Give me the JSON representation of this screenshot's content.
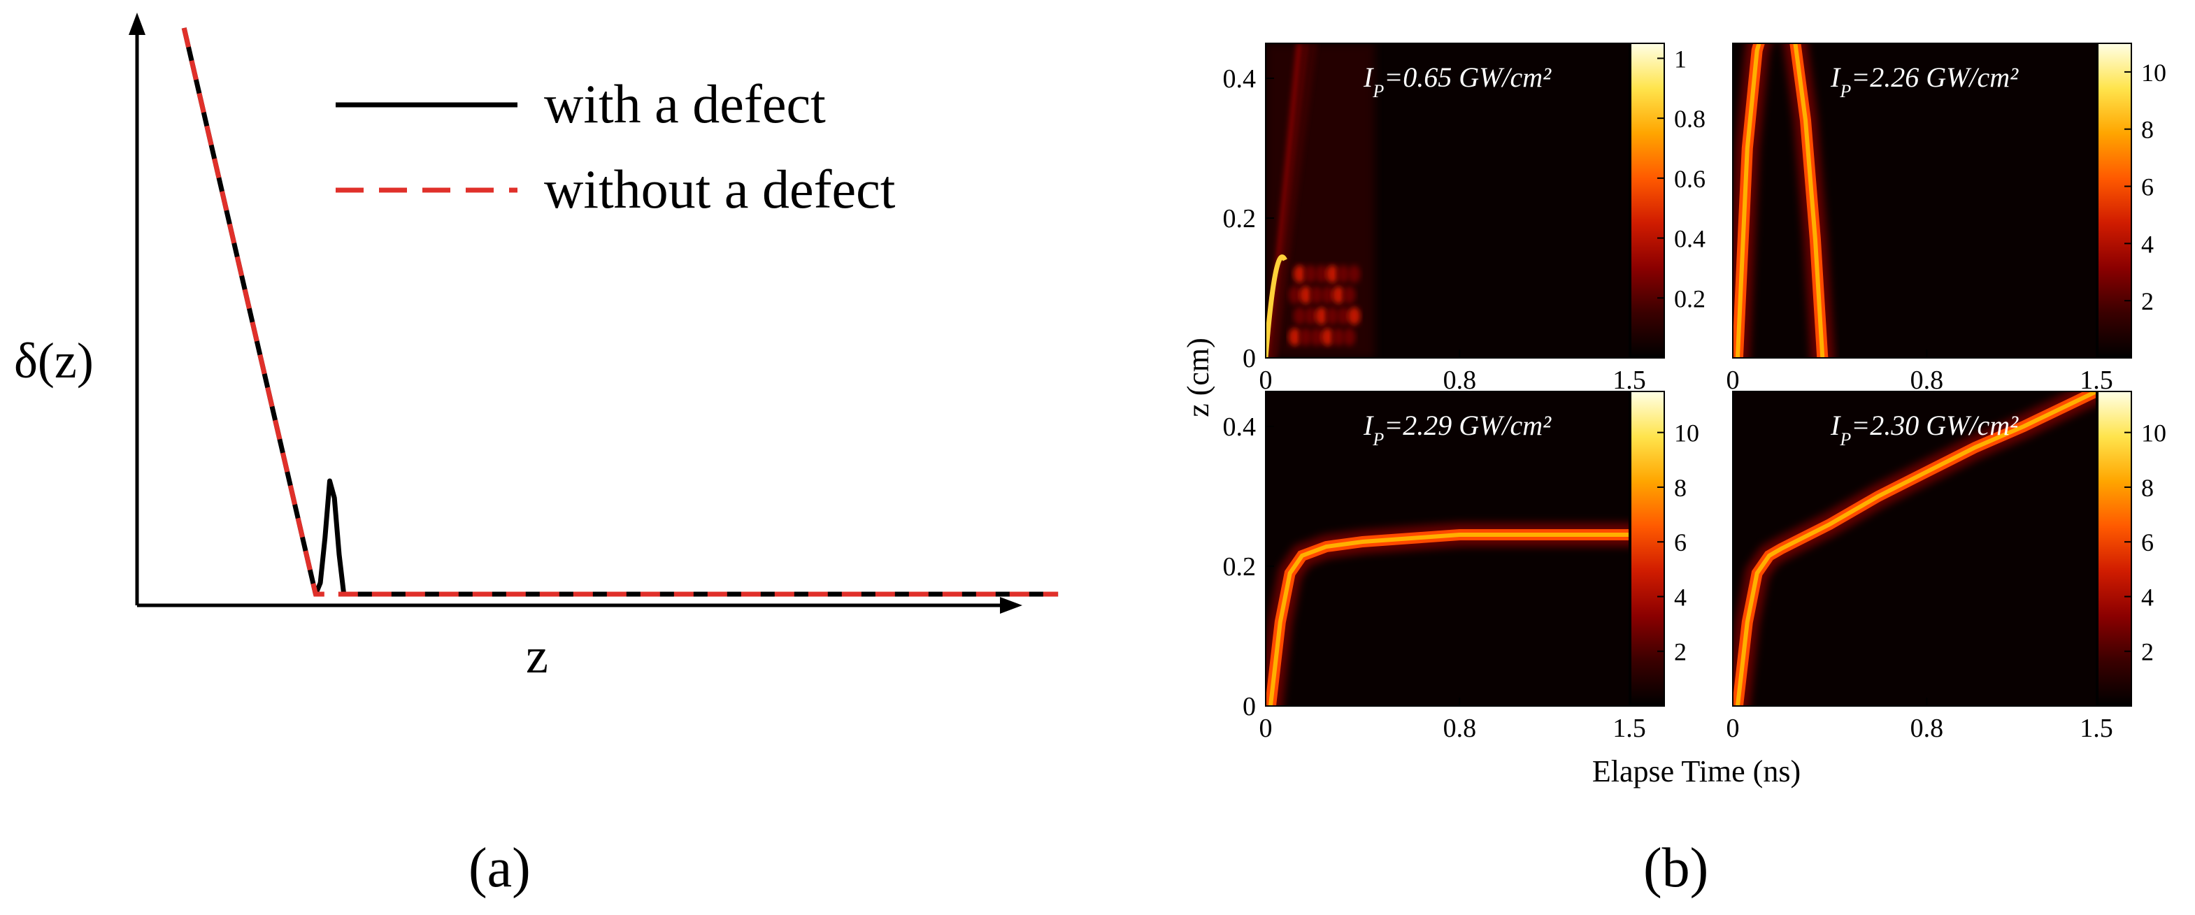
{
  "panel_labels": {
    "a": "(a)",
    "b": "(b)"
  },
  "colors": {
    "with_defect": "#000000",
    "without_defect": "#e0302a",
    "colormap": [
      "#000000",
      "#3a0000",
      "#8b0000",
      "#d01c00",
      "#ff5a00",
      "#ffa500",
      "#ffe44d",
      "#ffffe6"
    ]
  },
  "chart_data": [
    {
      "panel": "a",
      "type": "line",
      "xlabel": "z",
      "ylabel": "δ(z)",
      "xticks": [],
      "yticks": [],
      "legend": {
        "position": "top-right",
        "entries": [
          "with a defect",
          "without a defect"
        ]
      },
      "series": [
        {
          "name": "with a defect",
          "style": "solid",
          "x": [
            0.05,
            0.19,
            0.195,
            0.2,
            0.205,
            0.21,
            0.215,
            0.22,
            0.225,
            0.23,
            0.98
          ],
          "y": [
            1.0,
            0.0,
            0.02,
            0.1,
            0.2,
            0.17,
            0.07,
            0.0,
            0.0,
            0.0,
            0.0
          ]
        },
        {
          "name": "without a defect",
          "style": "dashed",
          "x": [
            0.05,
            0.19,
            0.98
          ],
          "y": [
            1.0,
            0.0,
            0.0
          ]
        }
      ]
    },
    {
      "panel": "b",
      "type": "heatmap",
      "xlabel": "Elapse Time (ns)",
      "ylabel": "z (cm)",
      "subplots": [
        {
          "annotation": "I_P=0.65 GW/cm²",
          "xlim": [
            0,
            1.5
          ],
          "ylim": [
            0,
            0.45
          ],
          "xticks": [
            "0",
            "0.8",
            "1.5"
          ],
          "yticks": [
            "0",
            "0.2",
            "0.4"
          ],
          "colorbar": {
            "min": 0,
            "max": 1.05,
            "ticks": [
              "0.2",
              "0.4",
              "0.6",
              "0.8",
              "1"
            ]
          },
          "pattern": "diffuse"
        },
        {
          "annotation": "I_P=2.26 GW/cm²",
          "xlim": [
            0,
            1.5
          ],
          "ylim": [
            0,
            0.45
          ],
          "xticks": [
            "0",
            "0.8",
            "1.5"
          ],
          "yticks": [],
          "colorbar": {
            "min": 0,
            "max": 11,
            "ticks": [
              "2",
              "4",
              "6",
              "8",
              "10"
            ]
          },
          "pattern": "arch",
          "curve": {
            "t": [
              0.02,
              0.06,
              0.1,
              0.15,
              0.2,
              0.25,
              0.3,
              0.34,
              0.37
            ],
            "z": [
              0.0,
              0.3,
              0.44,
              0.5,
              0.51,
              0.47,
              0.34,
              0.17,
              0.0
            ]
          }
        },
        {
          "annotation": "I_P=2.29 GW/cm²",
          "xlim": [
            0,
            1.5
          ],
          "ylim": [
            0,
            0.45
          ],
          "xticks": [
            "0",
            "0.8",
            "1.5"
          ],
          "yticks": [
            "0",
            "0.2",
            "0.4"
          ],
          "colorbar": {
            "min": 0,
            "max": 11.5,
            "ticks": [
              "2",
              "4",
              "6",
              "8",
              "10"
            ]
          },
          "pattern": "plateau",
          "curve": {
            "t": [
              0.02,
              0.06,
              0.1,
              0.15,
              0.25,
              0.4,
              0.6,
              0.8,
              1.0,
              1.2,
              1.5
            ],
            "z": [
              0.0,
              0.12,
              0.19,
              0.215,
              0.228,
              0.235,
              0.24,
              0.245,
              0.245,
              0.245,
              0.245
            ]
          }
        },
        {
          "annotation": "I_P=2.30 GW/cm²",
          "xlim": [
            0,
            1.5
          ],
          "ylim": [
            0,
            0.45
          ],
          "xticks": [
            "0",
            "0.8",
            "1.5"
          ],
          "yticks": [],
          "colorbar": {
            "min": 0,
            "max": 11.5,
            "ticks": [
              "2",
              "4",
              "6",
              "8",
              "10"
            ]
          },
          "pattern": "ramp",
          "curve": {
            "t": [
              0.02,
              0.06,
              0.1,
              0.15,
              0.2,
              0.4,
              0.6,
              0.8,
              1.0,
              1.2,
              1.5
            ],
            "z": [
              0.0,
              0.12,
              0.19,
              0.215,
              0.225,
              0.26,
              0.3,
              0.335,
              0.37,
              0.4,
              0.45
            ]
          }
        }
      ]
    }
  ]
}
